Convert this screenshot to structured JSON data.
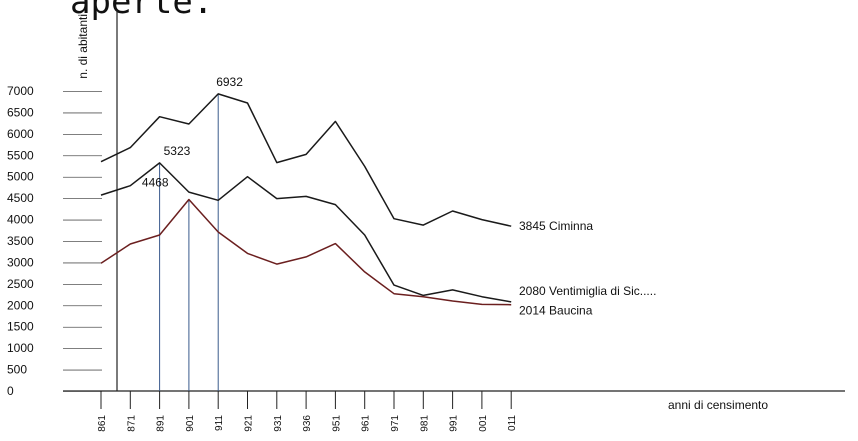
{
  "header_text": "aperte.",
  "chart_data": {
    "type": "line",
    "ylabel": "n. di abitanti",
    "xlabel": "anni di censimento",
    "ylim": [
      0,
      7000
    ],
    "yticks": [
      "7000",
      "6500",
      "6000",
      "5500",
      "5000",
      "4500",
      "4000",
      "3500",
      "3000",
      "2500",
      "2000",
      "1500",
      "1000",
      "500",
      "0"
    ],
    "categories": [
      "861",
      "871",
      "891",
      "901",
      "911",
      "921",
      "931",
      "936",
      "951",
      "961",
      "971",
      "981",
      "991",
      "001",
      "011"
    ],
    "grid": false,
    "series": [
      {
        "name": "3845 Ciminna",
        "color": "#1a1a1a",
        "values": [
          5350,
          5680,
          6400,
          6230,
          6932,
          6720,
          5330,
          5520,
          6290,
          5240,
          4020,
          3870,
          4200,
          4000,
          3845
        ]
      },
      {
        "name": "2080 Ventimiglia di Sic.....",
        "color": "#1a1a1a",
        "values": [
          4570,
          4790,
          5323,
          4640,
          4450,
          5000,
          4490,
          4540,
          4350,
          3640,
          2470,
          2230,
          2360,
          2200,
          2080
        ]
      },
      {
        "name": "2014 Baucina",
        "color": "#6b1f1f",
        "values": [
          2980,
          3430,
          3640,
          4468,
          3710,
          3210,
          2960,
          3130,
          3440,
          2780,
          2270,
          2200,
          2100,
          2020,
          2014
        ]
      }
    ],
    "annotations": [
      {
        "text": "6932",
        "category": "911",
        "value": 6932
      },
      {
        "text": "5323",
        "category": "891",
        "value": 5323
      },
      {
        "text": "4468",
        "category": "901",
        "value": 4468
      }
    ]
  }
}
